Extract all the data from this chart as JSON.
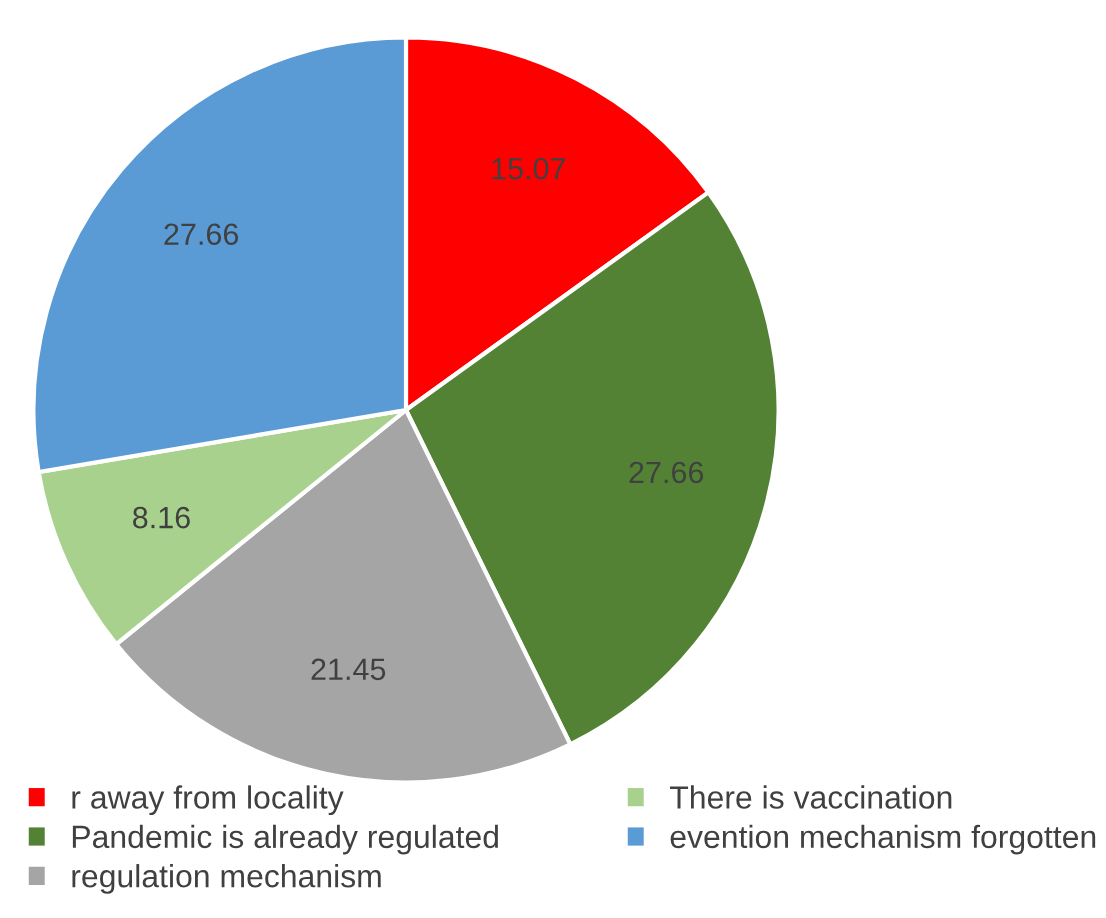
{
  "chart_data": {
    "type": "pie",
    "categories": [
      "r away from locality",
      "Pandemic is already regulated",
      "regulation mechanism",
      "There is vaccination",
      "evention mechanism forgotten"
    ],
    "values": [
      15.07,
      27.66,
      21.45,
      8.16,
      27.66
    ],
    "colors": [
      "#ff0000",
      "#548235",
      "#a5a5a5",
      "#a9d18e",
      "#5b9bd5"
    ],
    "data_labels": true,
    "legend": "bottom"
  }
}
